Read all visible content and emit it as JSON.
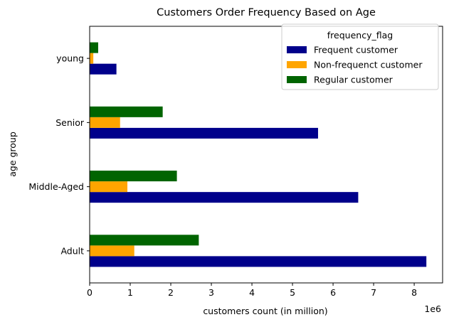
{
  "chart_data": {
    "type": "bar",
    "orientation": "horizontal",
    "title": "Customers Order Frequency Based on Age",
    "xlabel": "customers count (in million)",
    "ylabel": "age group",
    "x_offset_label": "1e6",
    "categories": [
      "Adult",
      "Middle-Aged",
      "Senior",
      "young"
    ],
    "x_ticks": [
      0,
      1,
      2,
      3,
      4,
      5,
      6,
      7,
      8
    ],
    "xlim": [
      0,
      8700000
    ],
    "legend_title": "frequency_flag",
    "legend_position": "top-right",
    "grid": false,
    "series": [
      {
        "name": "Frequent customer",
        "color": "#00008b",
        "values": [
          8300000,
          6620000,
          5630000,
          660000
        ]
      },
      {
        "name": "Non-frequenct customer",
        "color": "#ffa500",
        "values": [
          1100000,
          930000,
          750000,
          90000
        ]
      },
      {
        "name": "Regular customer",
        "color": "#006400",
        "values": [
          2690000,
          2150000,
          1800000,
          210000
        ]
      }
    ]
  }
}
